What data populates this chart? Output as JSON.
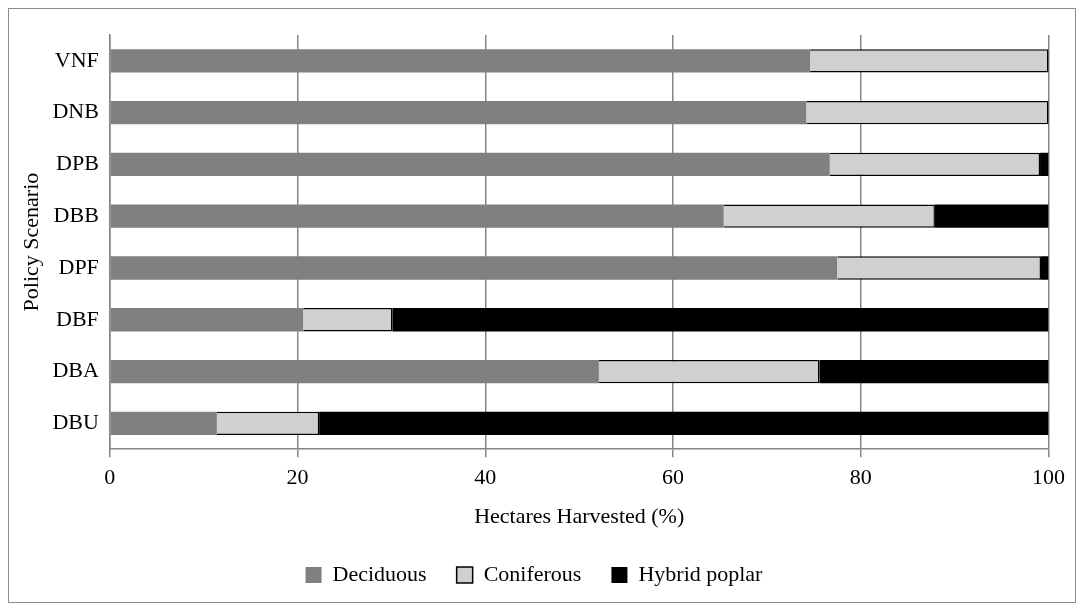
{
  "chart_data": {
    "type": "bar",
    "orientation": "horizontal",
    "stacked": true,
    "xlabel": "Hectares Harvested (%)",
    "ylabel": "Policy Scenario",
    "categories": [
      "VNF",
      "DNB",
      "DPB",
      "DBB",
      "DPF",
      "DBF",
      "DBA",
      "DBU"
    ],
    "series": [
      {
        "name": "Deciduous",
        "color": "#808080",
        "values": [
          74.6,
          74.2,
          76.7,
          65.4,
          77.5,
          20.6,
          52.1,
          11.4
        ]
      },
      {
        "name": "Coniferous",
        "color": "#d0d0d0",
        "values": [
          25.4,
          25.8,
          22.4,
          22.5,
          21.7,
          9.5,
          23.5,
          10.9
        ]
      },
      {
        "name": "Hybrid poplar",
        "color": "#000000",
        "values": [
          0,
          0,
          0.9,
          12.1,
          0.8,
          69.9,
          24.4,
          77.7
        ]
      }
    ],
    "xlim": [
      0,
      100
    ],
    "xticks": [
      0,
      20,
      40,
      60,
      80,
      100
    ],
    "grid": "x",
    "legend": "bottom"
  }
}
